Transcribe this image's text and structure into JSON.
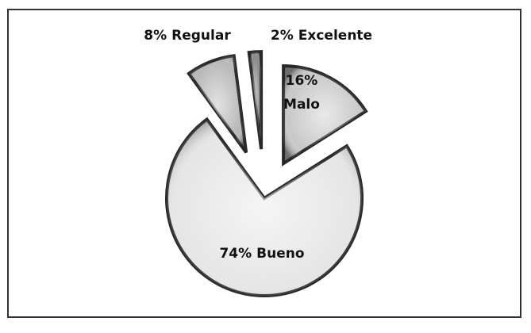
{
  "chart_data": {
    "type": "pie",
    "categories": [
      "Malo",
      "Bueno",
      "Regular",
      "Excelente"
    ],
    "values": [
      16,
      74,
      8,
      2
    ],
    "value_labels": [
      "16%",
      "74%",
      "8%",
      "2%"
    ],
    "colors": [
      "#c8c8c8",
      "#e6e6e6",
      "#b8b8b8",
      "#8a8a8a"
    ]
  }
}
